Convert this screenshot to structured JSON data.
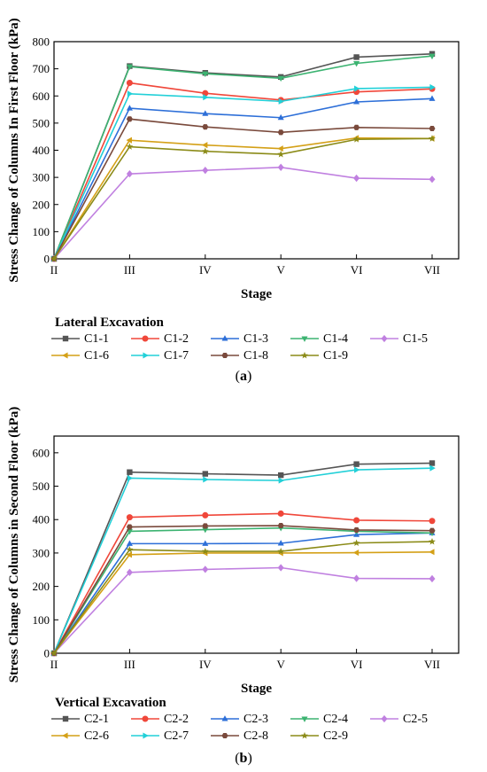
{
  "chart_data": [
    {
      "type": "line",
      "panel_label": "a",
      "xlabel": "Stage",
      "ylabel": "Stress Change of Columns In First Floor (kPa)",
      "categories": [
        "II",
        "III",
        "IV",
        "V",
        "VI",
        "VII"
      ],
      "ylim": [
        0,
        800
      ],
      "yticks": [
        0,
        100,
        200,
        300,
        400,
        500,
        600,
        700,
        800
      ],
      "grid": false,
      "legend_title": "Lateral Excavation",
      "legend_position": "bottom",
      "series": [
        {
          "name": "C1-1",
          "color": "#555555",
          "marker": "square",
          "values": [
            0,
            710,
            685,
            670,
            743,
            755
          ]
        },
        {
          "name": "C1-2",
          "color": "#f0473a",
          "marker": "circle",
          "values": [
            0,
            648,
            610,
            585,
            615,
            626
          ]
        },
        {
          "name": "C1-3",
          "color": "#2d6fd8",
          "marker": "triangle-up",
          "values": [
            0,
            555,
            535,
            520,
            578,
            590
          ]
        },
        {
          "name": "C1-4",
          "color": "#3cb371",
          "marker": "triangle-down",
          "values": [
            0,
            708,
            682,
            665,
            720,
            747
          ]
        },
        {
          "name": "C1-5",
          "color": "#c080e0",
          "marker": "diamond",
          "values": [
            0,
            313,
            326,
            337,
            297,
            293
          ]
        },
        {
          "name": "C1-6",
          "color": "#d4a017",
          "marker": "triangle-left",
          "values": [
            0,
            437,
            419,
            406,
            445,
            443
          ]
        },
        {
          "name": "C1-7",
          "color": "#22d0d8",
          "marker": "triangle-right",
          "values": [
            0,
            608,
            595,
            580,
            627,
            632
          ]
        },
        {
          "name": "C1-8",
          "color": "#7a4a3c",
          "marker": "hexagon",
          "values": [
            0,
            515,
            486,
            466,
            484,
            480
          ]
        },
        {
          "name": "C1-9",
          "color": "#8b8b18",
          "marker": "star",
          "values": [
            0,
            413,
            396,
            385,
            440,
            443
          ]
        }
      ]
    },
    {
      "type": "line",
      "panel_label": "b",
      "xlabel": "Stage",
      "ylabel": "Stress Change of Columns in Second Floor (kPa)",
      "categories": [
        "II",
        "III",
        "IV",
        "V",
        "VI",
        "VII"
      ],
      "ylim": [
        0,
        650
      ],
      "yticks": [
        0,
        100,
        200,
        300,
        400,
        500,
        600
      ],
      "grid": false,
      "legend_title": "Vertical Excavation",
      "legend_position": "bottom",
      "series": [
        {
          "name": "C2-1",
          "color": "#555555",
          "marker": "square",
          "values": [
            0,
            542,
            537,
            533,
            566,
            569
          ]
        },
        {
          "name": "C2-2",
          "color": "#f0473a",
          "marker": "circle",
          "values": [
            0,
            407,
            413,
            418,
            398,
            396
          ]
        },
        {
          "name": "C2-3",
          "color": "#2d6fd8",
          "marker": "triangle-up",
          "values": [
            0,
            328,
            328,
            329,
            355,
            360
          ]
        },
        {
          "name": "C2-4",
          "color": "#3cb371",
          "marker": "triangle-down",
          "values": [
            0,
            365,
            370,
            375,
            365,
            360
          ]
        },
        {
          "name": "C2-5",
          "color": "#c080e0",
          "marker": "diamond",
          "values": [
            0,
            242,
            251,
            256,
            224,
            223
          ]
        },
        {
          "name": "C2-6",
          "color": "#d4a017",
          "marker": "triangle-left",
          "values": [
            0,
            295,
            300,
            300,
            301,
            303
          ]
        },
        {
          "name": "C2-7",
          "color": "#22d0d8",
          "marker": "triangle-right",
          "values": [
            0,
            524,
            520,
            517,
            549,
            554
          ]
        },
        {
          "name": "C2-8",
          "color": "#7a4a3c",
          "marker": "hexagon",
          "values": [
            0,
            378,
            381,
            382,
            369,
            367
          ]
        },
        {
          "name": "C2-9",
          "color": "#8b8b18",
          "marker": "star",
          "values": [
            0,
            310,
            305,
            305,
            330,
            334
          ]
        }
      ]
    }
  ]
}
